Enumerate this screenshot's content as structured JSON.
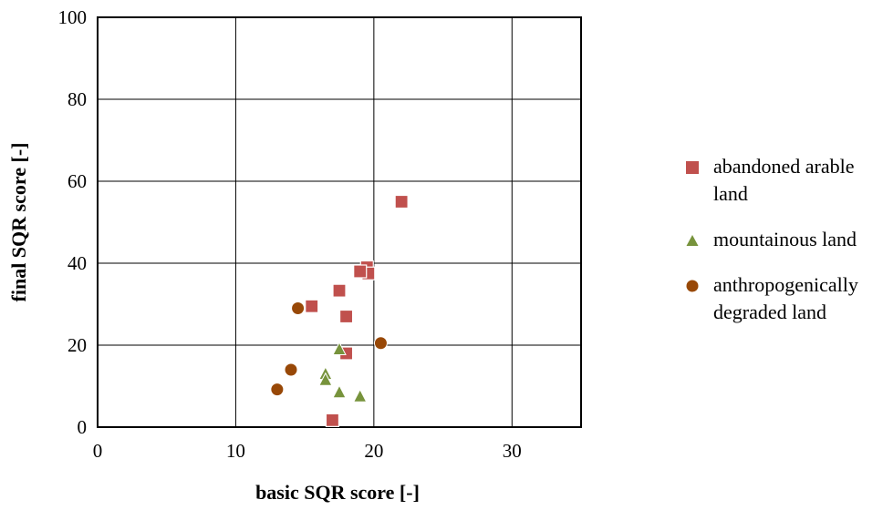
{
  "chart_data": {
    "type": "scatter",
    "xlabel": "basic SQR score [-]",
    "ylabel": "final SQR score [-]",
    "xlim": [
      0,
      35
    ],
    "ylim": [
      0,
      100
    ],
    "xticks": [
      0,
      10,
      20,
      30
    ],
    "yticks": [
      0,
      20,
      40,
      60,
      80,
      100
    ],
    "grid": true,
    "legend_position": "right",
    "series": [
      {
        "name": "abandoned arable land",
        "marker": "square",
        "color": "#c0504d",
        "points": [
          [
            22,
            55
          ],
          [
            19.5,
            39
          ],
          [
            19.6,
            37.5
          ],
          [
            19,
            38
          ],
          [
            17.5,
            33.3
          ],
          [
            15.5,
            29.5
          ],
          [
            18,
            27
          ],
          [
            18,
            18
          ],
          [
            17,
            1.7
          ]
        ]
      },
      {
        "name": "mountainous land",
        "marker": "triangle",
        "color": "#77933c",
        "points": [
          [
            17.5,
            19
          ],
          [
            16.5,
            13
          ],
          [
            16.5,
            11.5
          ],
          [
            17.5,
            8.5
          ],
          [
            19,
            7.5
          ]
        ]
      },
      {
        "name": "anthropogenically degraded land",
        "marker": "circle",
        "color": "#984807",
        "points": [
          [
            14.5,
            29
          ],
          [
            20.5,
            20.5
          ],
          [
            14,
            14
          ],
          [
            13,
            9.2
          ]
        ]
      }
    ]
  }
}
